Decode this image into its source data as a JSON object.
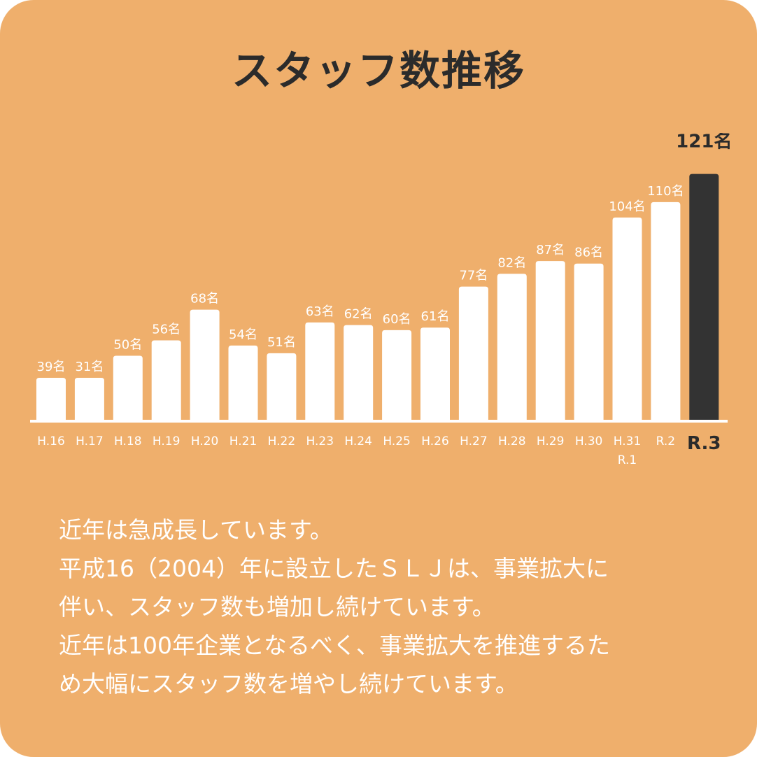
{
  "colors": {
    "background": "#efaf6c",
    "bar": "#ffffff",
    "highlight_bar": "#333333",
    "title_text": "#2b2b2b",
    "label_text": "#ffffff"
  },
  "title": "スタッフ数推移",
  "chart_data": {
    "type": "bar",
    "title": "スタッフ数推移",
    "xlabel": "",
    "ylabel": "",
    "categories": [
      "H.16",
      "H.17",
      "H.18",
      "H.19",
      "H.20",
      "H.21",
      "H.22",
      "H.23",
      "H.24",
      "H.25",
      "H.26",
      "H.27",
      "H.28",
      "H.29",
      "H.30",
      "H.31\nR.1",
      "R.2",
      "R.3"
    ],
    "values": [
      39,
      31,
      50,
      56,
      68,
      54,
      51,
      63,
      62,
      60,
      61,
      77,
      82,
      87,
      86,
      104,
      110,
      121
    ],
    "value_labels": [
      "39名",
      "31名",
      "50名",
      "56名",
      "68名",
      "54名",
      "51名",
      "63名",
      "62名",
      "60名",
      "61名",
      "77名",
      "82名",
      "87名",
      "86名",
      "104名",
      "110名",
      "121名"
    ],
    "highlight_index": 17,
    "grid": false,
    "legend": "none"
  },
  "description": [
    "近年は急成長しています。",
    "平成16（2004）年に設立したＳＬＪは、事業拡大に",
    "伴い、スタッフ数も増加し続けています。",
    "近年は100年企業となるべく、事業拡大を推進するた",
    "め大幅にスタッフ数を増やし続けています。"
  ]
}
